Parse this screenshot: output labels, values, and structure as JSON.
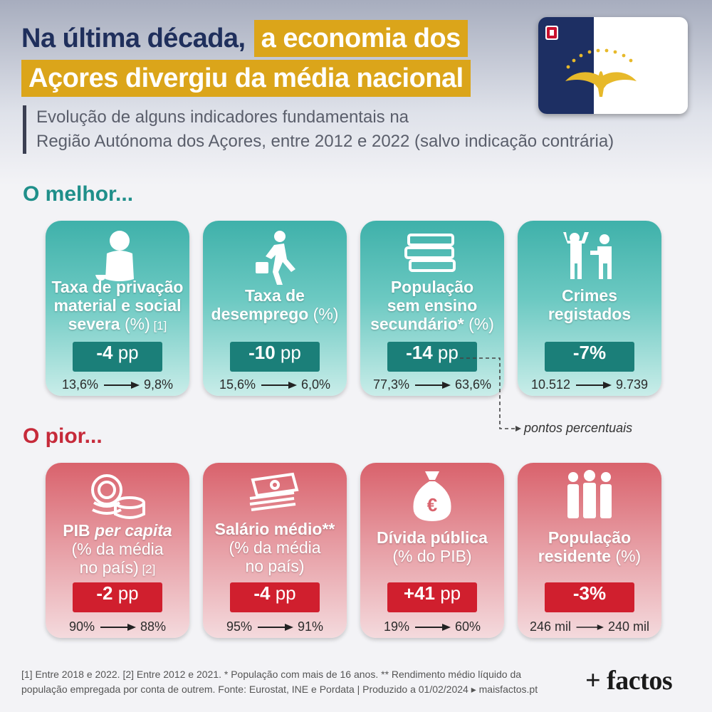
{
  "title": {
    "line1_plain": "Na última década,",
    "line1_highlight": "a economia dos",
    "line2_highlight": "Açores divergiu da média nacional"
  },
  "subtitle": {
    "line1": "Evolução de alguns indicadores fundamentais na",
    "line2": "Região Autónoma dos Açores, entre 2012 e 2022 (salvo indicação contrária)"
  },
  "colors": {
    "navy": "#1f2f5c",
    "gold": "#dba51a",
    "teal": "#1b7f79",
    "red": "#d01f2e"
  },
  "sections": {
    "good": "O melhor...",
    "bad": "O pior..."
  },
  "good_cards": [
    {
      "icon": "person-sitting-begging-icon",
      "l1": "Taxa de privação",
      "l2": "material e social",
      "l3": "severa",
      "unit": " (%)",
      "note": " [1]",
      "value": "-4",
      "value_unit": " pp",
      "from": "13,6%",
      "to": "9,8%"
    },
    {
      "icon": "walking-briefcase-icon",
      "l1": "Taxa de",
      "l2": "desemprego",
      "unit": " (%)",
      "value": "-10",
      "value_unit": " pp",
      "from": "15,6%",
      "to": "6,0%"
    },
    {
      "icon": "stack-of-books-icon",
      "l1": "População",
      "l2": "sem ensino",
      "l3": "secundário*",
      "unit": " (%)",
      "value": "-14",
      "value_unit": " pp",
      "from": "77,3%",
      "to": "63,6%"
    },
    {
      "icon": "robbery-gun-icon",
      "l1": "Crimes",
      "l2": "registados",
      "value": "-7%",
      "from": "10.512",
      "to": "9.739"
    }
  ],
  "bad_cards": [
    {
      "icon": "coins-icon",
      "l1a": "PIB ",
      "l1b": "per capita",
      "l2": "(% da média",
      "l3": "no país)",
      "note": " [2]",
      "value": "-2",
      "value_unit": " pp",
      "from": "90%",
      "to": "88%"
    },
    {
      "icon": "banknotes-icon",
      "l1": "Salário médio**",
      "l2": "(% da média",
      "l3": "no país)",
      "value": "-4",
      "value_unit": " pp",
      "from": "95%",
      "to": "91%"
    },
    {
      "icon": "money-bag-euro-icon",
      "l1": "Dívida pública",
      "l2": "(% do PIB)",
      "value": "+41",
      "value_unit": " pp",
      "from": "19%",
      "to": "60%"
    },
    {
      "icon": "group-of-people-icon",
      "l1": "População",
      "l2": "residente",
      "unit": " (%)",
      "value": "-3%",
      "from": "246 mil",
      "to": "240 mil"
    }
  ],
  "pp_note": "pontos percentuais",
  "footer": {
    "line1": "[1] Entre 2018 e 2022. [2] Entre 2012 e 2021. * População com mais de 16 anos. ** Rendimento médio líquido da",
    "line2": "população empregada por conta de outrem. Fonte: Eurostat, INE e Pordata | Produzido a 01/02/2024 ▸ maisfactos.pt"
  },
  "logo": "+ factos"
}
